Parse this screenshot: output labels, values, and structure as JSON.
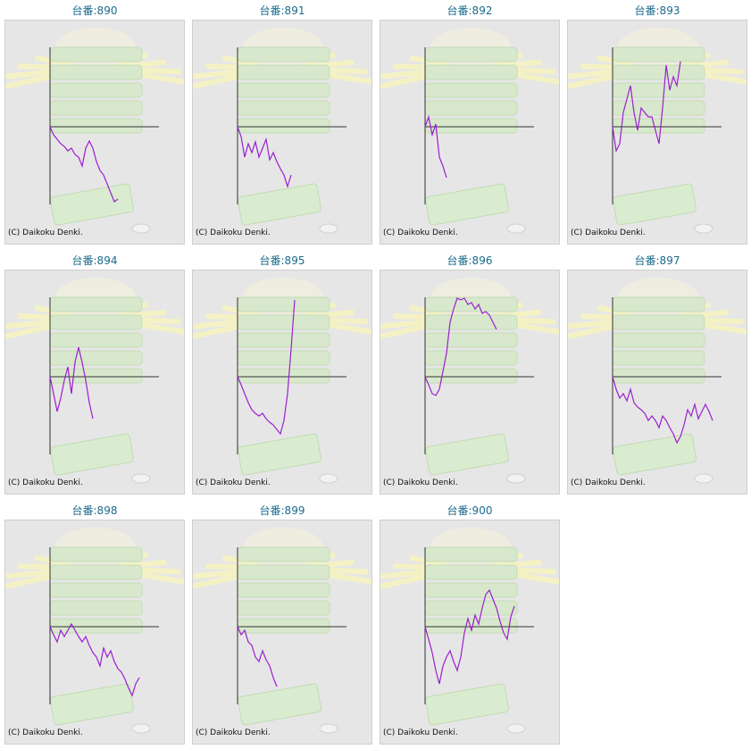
{
  "panels": [
    {
      "label": "台番:890",
      "copyright": "(C) Daikoku Denki.",
      "chart": {
        "type": "line",
        "ylim": [
          -88,
          88
        ],
        "values": [
          0,
          -9,
          -14,
          -19,
          -22,
          -27,
          -24,
          -31,
          -34,
          -44,
          -24,
          -16,
          -24,
          -39,
          -49,
          -54,
          -64,
          -74,
          -84,
          -81
        ]
      }
    },
    {
      "label": "台番:891",
      "copyright": "(C) Daikoku Denki.",
      "chart": {
        "type": "line",
        "ylim": [
          -88,
          88
        ],
        "values": [
          0,
          -11,
          -34,
          -19,
          -29,
          -17,
          -34,
          -24,
          -14,
          -37,
          -29,
          -39,
          -47,
          -54,
          -67,
          -54
        ]
      }
    },
    {
      "label": "台番:892",
      "copyright": "(C) Daikoku Denki.",
      "chart": {
        "type": "line",
        "ylim": [
          -88,
          88
        ],
        "values": [
          0,
          11,
          -9,
          3,
          -34,
          -44,
          -57
        ]
      }
    },
    {
      "label": "台番:893",
      "copyright": "(C) Daikoku Denki.",
      "chart": {
        "type": "line",
        "ylim": [
          -88,
          88
        ],
        "values": [
          0,
          -27,
          -19,
          16,
          31,
          46,
          16,
          -4,
          21,
          16,
          11,
          11,
          -4,
          -19,
          21,
          69,
          41,
          56,
          46,
          73
        ]
      }
    },
    {
      "label": "台番:894",
      "copyright": "(C) Daikoku Denki.",
      "chart": {
        "type": "line",
        "ylim": [
          -88,
          88
        ],
        "values": [
          0,
          -19,
          -39,
          -24,
          -4,
          11,
          -19,
          16,
          33,
          16,
          -4,
          -29,
          -47
        ]
      }
    },
    {
      "label": "台番:895",
      "copyright": "(C) Daikoku Denki.",
      "chart": {
        "type": "line",
        "ylim": [
          -88,
          88
        ],
        "values": [
          0,
          -9,
          -19,
          -29,
          -37,
          -41,
          -44,
          -41,
          -47,
          -51,
          -54,
          -59,
          -64,
          -49,
          -19,
          31,
          86
        ]
      }
    },
    {
      "label": "台番:896",
      "copyright": "(C) Daikoku Denki.",
      "chart": {
        "type": "line",
        "ylim": [
          -88,
          88
        ],
        "values": [
          0,
          -9,
          -19,
          -21,
          -14,
          6,
          26,
          61,
          76,
          88,
          86,
          88,
          81,
          83,
          76,
          81,
          71,
          73,
          69,
          61,
          53
        ]
      }
    },
    {
      "label": "台番:897",
      "copyright": "(C) Daikoku Denki.",
      "chart": {
        "type": "line",
        "ylim": [
          -88,
          88
        ],
        "values": [
          0,
          -14,
          -24,
          -19,
          -27,
          -14,
          -29,
          -34,
          -37,
          -41,
          -49,
          -44,
          -49,
          -57,
          -44,
          -49,
          -57,
          -64,
          -74,
          -67,
          -54,
          -37,
          -44,
          -31,
          -47,
          -39,
          -31,
          -39,
          -49
        ]
      }
    },
    {
      "label": "台番:898",
      "copyright": "(C) Daikoku Denki.",
      "chart": {
        "type": "line",
        "ylim": [
          -88,
          88
        ],
        "values": [
          0,
          -9,
          -17,
          -4,
          -11,
          -4,
          3,
          -4,
          -11,
          -17,
          -11,
          -21,
          -29,
          -34,
          -44,
          -24,
          -34,
          -27,
          -39,
          -47,
          -51,
          -59,
          -69,
          -77,
          -64,
          -57
        ]
      }
    },
    {
      "label": "台番:899",
      "copyright": "(C) Daikoku Denki.",
      "chart": {
        "type": "line",
        "ylim": [
          -88,
          88
        ],
        "values": [
          0,
          -9,
          -4,
          -17,
          -21,
          -34,
          -39,
          -27,
          -37,
          -44,
          -57,
          -67
        ]
      }
    },
    {
      "label": "台番:900",
      "copyright": "(C) Daikoku Denki.",
      "chart": {
        "type": "line",
        "ylim": [
          -88,
          88
        ],
        "values": [
          0,
          -14,
          -29,
          -49,
          -64,
          -44,
          -34,
          -27,
          -39,
          -49,
          -34,
          -7,
          9,
          -4,
          13,
          3,
          21,
          36,
          41,
          31,
          21,
          6,
          -7,
          -14,
          11,
          23
        ]
      }
    }
  ]
}
